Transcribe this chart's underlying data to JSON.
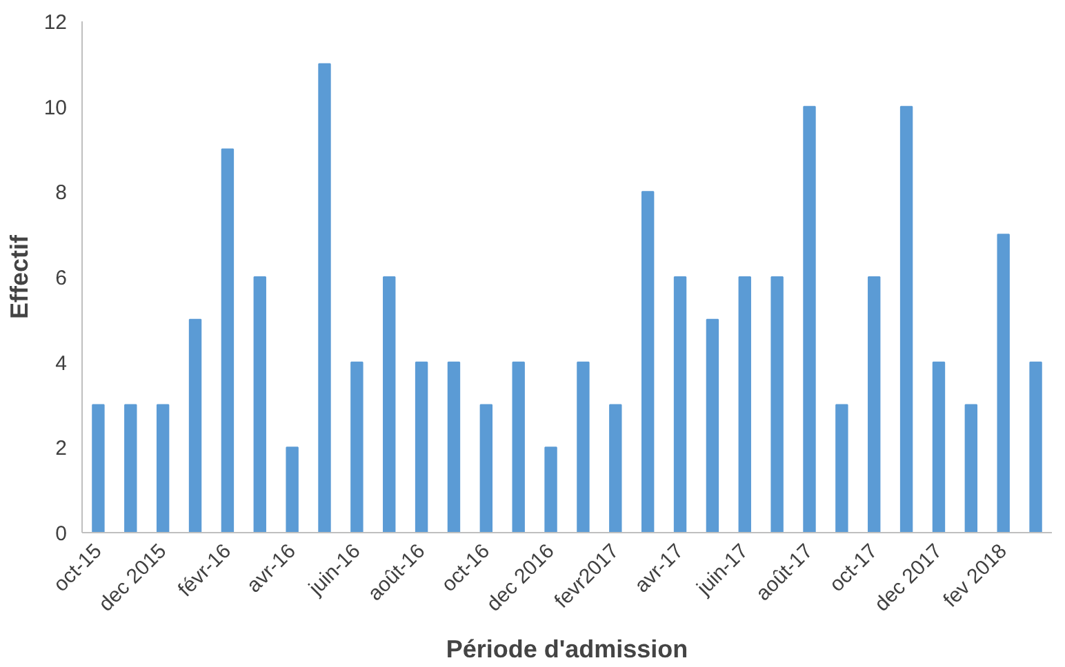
{
  "chart_data": {
    "type": "bar",
    "xlabel": "Période d'admission",
    "ylabel": "Effectif",
    "categories": [
      "oct-15",
      null,
      "dec 2015",
      null,
      "févr-16",
      null,
      "avr-16",
      null,
      "juin-16",
      null,
      "août-16",
      null,
      "oct-16",
      null,
      "dec 2016",
      null,
      "fevr2017",
      null,
      "avr-17",
      null,
      "juin-17",
      null,
      "août-17",
      null,
      "oct-17",
      null,
      "dec 2017",
      null,
      "fev 2018",
      null
    ],
    "values": [
      3,
      3,
      3,
      5,
      9,
      6,
      2,
      11,
      4,
      6,
      4,
      4,
      3,
      4,
      2,
      4,
      3,
      8,
      6,
      5,
      6,
      6,
      10,
      3,
      6,
      10,
      4,
      3,
      7,
      4
    ],
    "color": "#5b9bd5",
    "ylim": [
      0,
      12
    ],
    "yticks": [
      0,
      2,
      4,
      6,
      8,
      10,
      12
    ],
    "grid": false
  }
}
